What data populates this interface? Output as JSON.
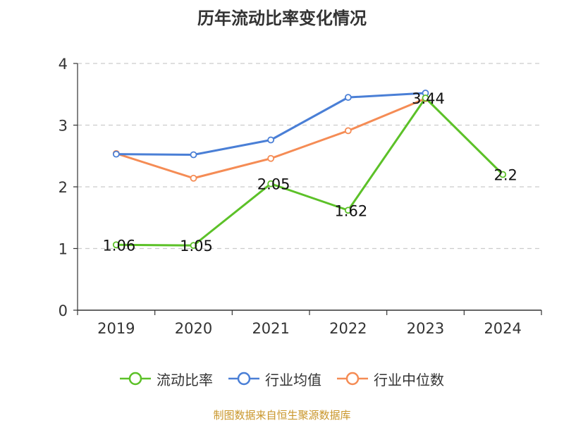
{
  "chart_data": {
    "type": "line",
    "title": "历年流动比率变化情况",
    "categories": [
      "2019",
      "2020",
      "2021",
      "2022",
      "2023",
      "2024"
    ],
    "ylim": [
      0,
      4
    ],
    "yticks": [
      "0",
      "1",
      "2",
      "3",
      "4"
    ],
    "grid": true,
    "legend_position": "bottom",
    "series": [
      {
        "name": "流动比率",
        "color": "#5cc128",
        "values": [
          1.06,
          1.05,
          2.05,
          1.62,
          3.44,
          2.2
        ],
        "labels": [
          "1.06",
          "1.05",
          "2.05",
          "1.62",
          "3.44",
          "2.2"
        ]
      },
      {
        "name": "行业均值",
        "color": "#4a7fd6",
        "values": [
          2.53,
          2.52,
          2.76,
          3.45,
          3.52,
          null
        ]
      },
      {
        "name": "行业中位数",
        "color": "#f58c55",
        "values": [
          2.54,
          2.14,
          2.46,
          2.91,
          3.43,
          null
        ]
      }
    ]
  },
  "footer": {
    "text": "制图数据来自恒生聚源数据库",
    "color": "#c9962a"
  }
}
